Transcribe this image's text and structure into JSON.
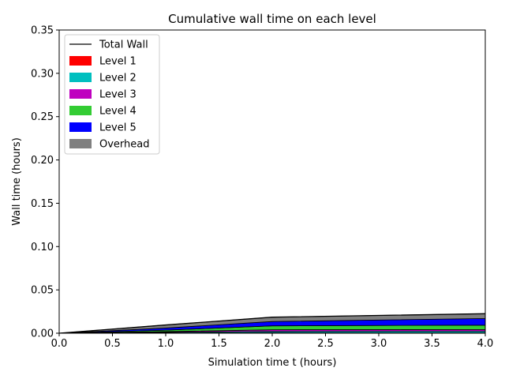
{
  "chart_data": {
    "type": "area",
    "title": "Cumulative wall time on each level",
    "xlabel": "Simulation time t (hours)",
    "ylabel": "Wall time (hours)",
    "xlim": [
      0,
      4
    ],
    "ylim": [
      0,
      0.35
    ],
    "x": [
      0,
      1,
      2,
      4
    ],
    "xticks": [
      "0.0",
      "0.5",
      "1.0",
      "1.5",
      "2.0",
      "2.5",
      "3.0",
      "3.5",
      "4.0"
    ],
    "yticks": [
      "0.00",
      "0.05",
      "0.10",
      "0.15",
      "0.20",
      "0.25",
      "0.30",
      "0.35"
    ],
    "grid": false,
    "stacked": true,
    "legend_position": "top-left",
    "total_line": {
      "name": "Total Wall",
      "color": "#000000",
      "values": [
        0,
        0.0095,
        0.0185,
        0.0225
      ]
    },
    "series": [
      {
        "name": "Level 1",
        "color": "#ff0000",
        "values": [
          0,
          0.0003,
          0.0004,
          0.0005
        ]
      },
      {
        "name": "Level 2",
        "color": "#00bfbf",
        "values": [
          0,
          0.0008,
          0.0016,
          0.0018
        ]
      },
      {
        "name": "Level 3",
        "color": "#bf00bf",
        "values": [
          0,
          0.0008,
          0.002,
          0.002
        ]
      },
      {
        "name": "Level 4",
        "color": "#33cc33",
        "values": [
          0,
          0.0016,
          0.0045,
          0.005
        ]
      },
      {
        "name": "Level 5",
        "color": "#0000ff",
        "values": [
          0,
          0.0025,
          0.005,
          0.0077
        ]
      },
      {
        "name": "Overhead",
        "color": "#808080",
        "values": [
          0,
          0.0035,
          0.005,
          0.0055
        ]
      }
    ]
  }
}
